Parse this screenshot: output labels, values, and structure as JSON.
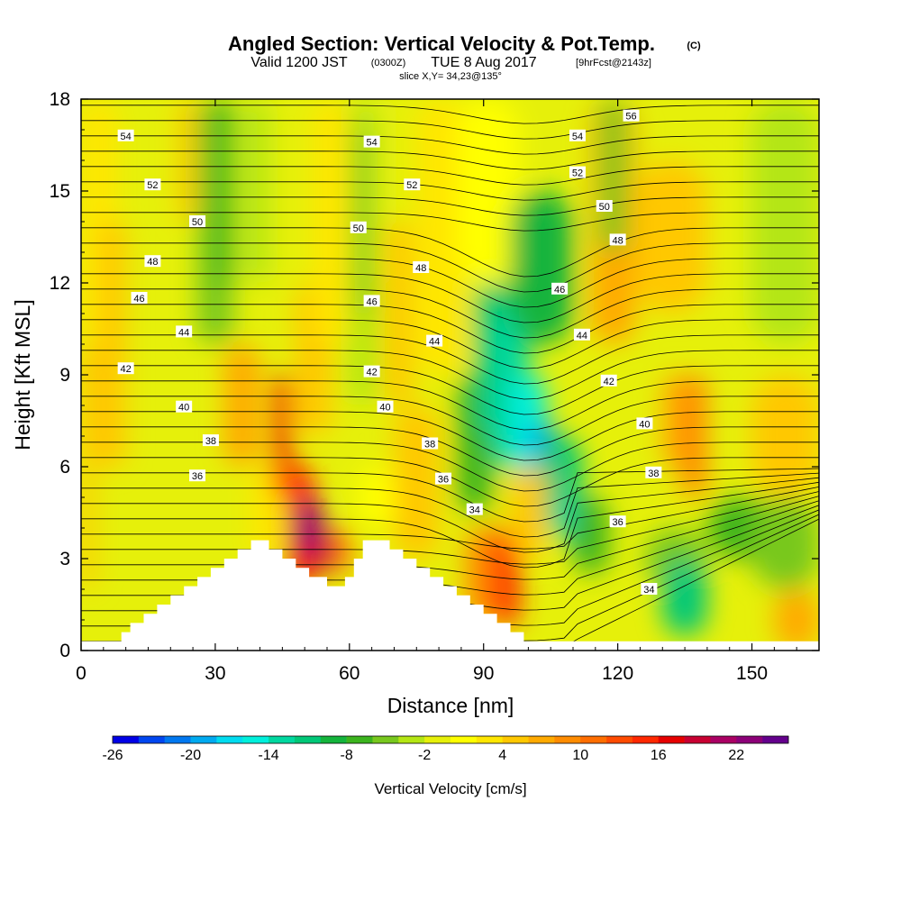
{
  "chart_data": {
    "type": "heatmap",
    "title": {
      "main": "Angled Section: Vertical Velocity & Pot.Temp.",
      "main_unit": "(C)",
      "valid_a": "Valid 1200 JST",
      "valid_z": "(0300Z)",
      "valid_b": "TUE 8 Aug 2017",
      "fcst": "[9hrFcst@2143z]",
      "slice": "slice X,Y= 34,23@135°"
    },
    "xlabel": "Distance [nm]",
    "ylabel": "Height [Kft MSL]",
    "xlim": [
      0,
      165
    ],
    "ylim": [
      0,
      18
    ],
    "x_ticks": [
      "0",
      "30",
      "60",
      "90",
      "120",
      "150"
    ],
    "y_ticks": [
      "0",
      "3",
      "6",
      "9",
      "12",
      "15",
      "18"
    ],
    "colorbar": {
      "label": "Vertical Velocity [cm/s]",
      "min": -26,
      "max": 26,
      "step": 2,
      "tick_labels": [
        "-26",
        "-20",
        "-14",
        "-8",
        "-2",
        "4",
        "10",
        "16",
        "22"
      ],
      "colors": [
        "#0000e6",
        "#0046f0",
        "#0078f0",
        "#00aaf0",
        "#00dcf0",
        "#00f0dc",
        "#00d8a0",
        "#00c878",
        "#14b43c",
        "#3cb41e",
        "#78c81e",
        "#b4e614",
        "#e6f00a",
        "#ffff00",
        "#ffe600",
        "#ffc800",
        "#ffaa00",
        "#ff8c00",
        "#ff6e00",
        "#ff4b00",
        "#ff2800",
        "#e60000",
        "#c80032",
        "#aa0064",
        "#8c0078",
        "#64008c"
      ]
    },
    "terrain_kft": [
      [
        0,
        0.3
      ],
      [
        9,
        0.3
      ],
      [
        9,
        0.6
      ],
      [
        11,
        0.6
      ],
      [
        11,
        0.9
      ],
      [
        14,
        0.9
      ],
      [
        14,
        1.2
      ],
      [
        17,
        1.2
      ],
      [
        17,
        1.5
      ],
      [
        20,
        1.5
      ],
      [
        20,
        1.8
      ],
      [
        23,
        1.8
      ],
      [
        23,
        2.1
      ],
      [
        26,
        2.1
      ],
      [
        26,
        2.4
      ],
      [
        29,
        2.4
      ],
      [
        29,
        2.7
      ],
      [
        32,
        2.7
      ],
      [
        32,
        3.0
      ],
      [
        35,
        3.0
      ],
      [
        35,
        3.3
      ],
      [
        38,
        3.3
      ],
      [
        38,
        3.6
      ],
      [
        42,
        3.6
      ],
      [
        42,
        3.3
      ],
      [
        45,
        3.3
      ],
      [
        45,
        3.0
      ],
      [
        48,
        3.0
      ],
      [
        48,
        2.7
      ],
      [
        51,
        2.7
      ],
      [
        51,
        2.4
      ],
      [
        55,
        2.4
      ],
      [
        55,
        2.1
      ],
      [
        59,
        2.1
      ],
      [
        59,
        2.4
      ],
      [
        61,
        2.4
      ],
      [
        61,
        3.0
      ],
      [
        63,
        3.0
      ],
      [
        63,
        3.6
      ],
      [
        69,
        3.6
      ],
      [
        69,
        3.3
      ],
      [
        72,
        3.3
      ],
      [
        72,
        3.0
      ],
      [
        75,
        3.0
      ],
      [
        75,
        2.7
      ],
      [
        78,
        2.7
      ],
      [
        78,
        2.4
      ],
      [
        81,
        2.4
      ],
      [
        81,
        2.1
      ],
      [
        84,
        2.1
      ],
      [
        84,
        1.8
      ],
      [
        87,
        1.8
      ],
      [
        87,
        1.5
      ],
      [
        90,
        1.5
      ],
      [
        90,
        1.2
      ],
      [
        93,
        1.2
      ],
      [
        93,
        0.9
      ],
      [
        96,
        0.9
      ],
      [
        96,
        0.6
      ],
      [
        99,
        0.6
      ],
      [
        99,
        0.3
      ],
      [
        165,
        0.3
      ]
    ],
    "contour_labels": [
      {
        "t": "56",
        "x": 123,
        "y": 17.45
      },
      {
        "t": "54",
        "x": 10,
        "y": 16.8
      },
      {
        "t": "54",
        "x": 65,
        "y": 16.6
      },
      {
        "t": "54",
        "x": 111,
        "y": 16.8
      },
      {
        "t": "52",
        "x": 16,
        "y": 15.2
      },
      {
        "t": "52",
        "x": 74,
        "y": 15.2
      },
      {
        "t": "52",
        "x": 111,
        "y": 15.6
      },
      {
        "t": "50",
        "x": 26,
        "y": 14.0
      },
      {
        "t": "50",
        "x": 62,
        "y": 13.8
      },
      {
        "t": "50",
        "x": 117,
        "y": 14.5
      },
      {
        "t": "48",
        "x": 16,
        "y": 12.7
      },
      {
        "t": "48",
        "x": 76,
        "y": 12.5
      },
      {
        "t": "48",
        "x": 120,
        "y": 13.4
      },
      {
        "t": "46",
        "x": 13,
        "y": 11.5
      },
      {
        "t": "46",
        "x": 65,
        "y": 11.4
      },
      {
        "t": "46",
        "x": 107,
        "y": 11.8
      },
      {
        "t": "44",
        "x": 23,
        "y": 10.4
      },
      {
        "t": "44",
        "x": 79,
        "y": 10.1
      },
      {
        "t": "44",
        "x": 112,
        "y": 10.3
      },
      {
        "t": "42",
        "x": 10,
        "y": 9.2
      },
      {
        "t": "42",
        "x": 65,
        "y": 9.1
      },
      {
        "t": "42",
        "x": 118,
        "y": 8.8
      },
      {
        "t": "40",
        "x": 23,
        "y": 7.95
      },
      {
        "t": "40",
        "x": 68,
        "y": 7.95
      },
      {
        "t": "40",
        "x": 126,
        "y": 7.4
      },
      {
        "t": "38",
        "x": 29,
        "y": 6.85
      },
      {
        "t": "38",
        "x": 78,
        "y": 6.75
      },
      {
        "t": "38",
        "x": 128,
        "y": 5.8
      },
      {
        "t": "36",
        "x": 26,
        "y": 5.7
      },
      {
        "t": "36",
        "x": 81,
        "y": 5.6
      },
      {
        "t": "36",
        "x": 120,
        "y": 4.2
      },
      {
        "t": "34",
        "x": 88,
        "y": 4.6
      },
      {
        "t": "34",
        "x": 127,
        "y": 2.0
      }
    ]
  }
}
